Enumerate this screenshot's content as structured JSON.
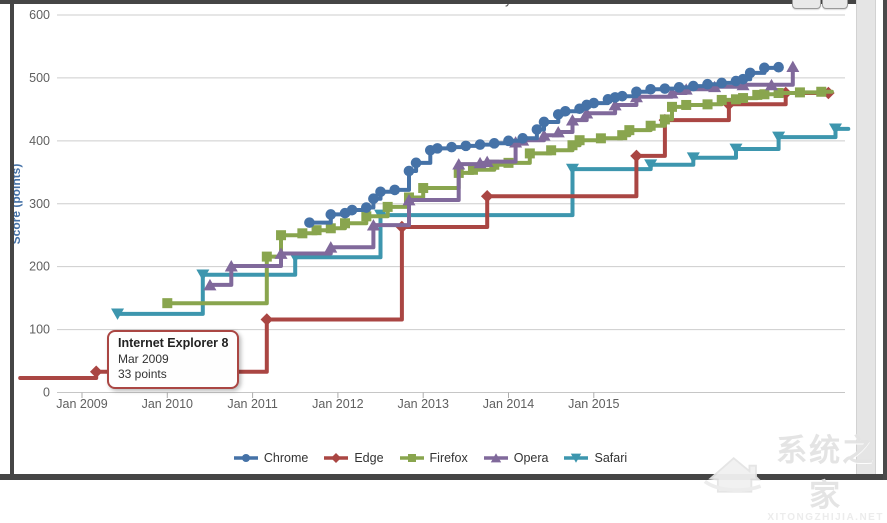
{
  "title_fragment": "y",
  "tooltip": {
    "title": "Internet Explorer 8",
    "date": "Mar 2009",
    "points": "33 points",
    "border_color": "#AA4643"
  },
  "watermark": {
    "text": "系统之家",
    "subtext": "XITONGZHIJIA.NET"
  },
  "chart_data": {
    "type": "line",
    "step": "left",
    "title": "",
    "y_axis": {
      "title": "Score (points)",
      "title_color": "#4572A7",
      "min": 0,
      "max": 600,
      "tick_interval": 100
    },
    "x_axis": {
      "tick_labels": [
        "Jan 2009",
        "Jan 2010",
        "Jan 2011",
        "Jan 2012",
        "Jan 2013",
        "Jan 2014",
        "Jan 2015"
      ],
      "tick_months": [
        0,
        12,
        24,
        36,
        48,
        60,
        72
      ],
      "start_label": "Jan 2009"
    },
    "grid": true,
    "legend_position": "bottom",
    "series": [
      {
        "name": "Safari",
        "color": "#3D96AE",
        "marker": "triangle-down",
        "points": [
          [
            5,
            125
          ],
          [
            17,
            187
          ],
          [
            30,
            215
          ],
          [
            42,
            282
          ],
          [
            69,
            355
          ],
          [
            80,
            362
          ],
          [
            86,
            373
          ],
          [
            92,
            387
          ],
          [
            98,
            406
          ],
          [
            106,
            419
          ],
          [
            107.8,
            419,
            0
          ]
        ]
      },
      {
        "name": "Edge",
        "color": "#AA4643",
        "marker": "diamond",
        "points": [
          [
            -8.7,
            23,
            0
          ],
          [
            2,
            33
          ],
          [
            26,
            116
          ],
          [
            45,
            263
          ],
          [
            57,
            312
          ],
          [
            78,
            376
          ],
          [
            82,
            433
          ],
          [
            91,
            458
          ],
          [
            99,
            476
          ],
          [
            105,
            476
          ]
        ]
      },
      {
        "name": "Firefox",
        "color": "#89A54E",
        "marker": "square",
        "points": [
          [
            12,
            142
          ],
          [
            26,
            216
          ],
          [
            28,
            250
          ],
          [
            31,
            253
          ],
          [
            33,
            258
          ],
          [
            35,
            261
          ],
          [
            37,
            269
          ],
          [
            40,
            280
          ],
          [
            43,
            295
          ],
          [
            46,
            310
          ],
          [
            48,
            325
          ],
          [
            53,
            349
          ],
          [
            55,
            354
          ],
          [
            58,
            362
          ],
          [
            60,
            365
          ],
          [
            63,
            380
          ],
          [
            66,
            385
          ],
          [
            69,
            393
          ],
          [
            70,
            401
          ],
          [
            73,
            404
          ],
          [
            76,
            409
          ],
          [
            77,
            417
          ],
          [
            80,
            424
          ],
          [
            82,
            434
          ],
          [
            83,
            454
          ],
          [
            85,
            457
          ],
          [
            88,
            458
          ],
          [
            90,
            465
          ],
          [
            92,
            466
          ],
          [
            93,
            468
          ],
          [
            95,
            473
          ],
          [
            96,
            474
          ],
          [
            98,
            476
          ],
          [
            101,
            477
          ],
          [
            104,
            478
          ],
          [
            105.5,
            478,
            0
          ]
        ]
      },
      {
        "name": "Opera",
        "color": "#80699B",
        "marker": "triangle-up",
        "points": [
          [
            18,
            171
          ],
          [
            21,
            201
          ],
          [
            28,
            221
          ],
          [
            35,
            231
          ],
          [
            41,
            266
          ],
          [
            46,
            306
          ],
          [
            53,
            363
          ],
          [
            56,
            365
          ],
          [
            57,
            367
          ],
          [
            61,
            398
          ],
          [
            62,
            401
          ],
          [
            65,
            409
          ],
          [
            67,
            414
          ],
          [
            69,
            433
          ],
          [
            71,
            444
          ],
          [
            75,
            457
          ],
          [
            78,
            470
          ],
          [
            83,
            476
          ],
          [
            85,
            482
          ],
          [
            89,
            486
          ],
          [
            93,
            489
          ],
          [
            97,
            489
          ],
          [
            100,
            518
          ]
        ]
      },
      {
        "name": "Chrome",
        "color": "#4572A7",
        "marker": "circle",
        "points": [
          [
            32,
            270
          ],
          [
            35,
            283
          ],
          [
            37,
            285
          ],
          [
            38,
            290
          ],
          [
            40,
            294
          ],
          [
            41,
            308
          ],
          [
            42,
            319
          ],
          [
            44,
            322
          ],
          [
            46,
            352
          ],
          [
            47,
            365
          ],
          [
            49,
            385
          ],
          [
            50,
            388
          ],
          [
            52,
            390
          ],
          [
            54,
            392
          ],
          [
            56,
            394
          ],
          [
            58,
            396
          ],
          [
            60,
            400
          ],
          [
            62,
            404
          ],
          [
            64,
            418
          ],
          [
            65,
            430
          ],
          [
            67,
            442
          ],
          [
            68,
            447
          ],
          [
            70,
            451
          ],
          [
            71,
            457
          ],
          [
            72,
            460
          ],
          [
            74,
            466
          ],
          [
            75,
            469
          ],
          [
            76,
            471
          ],
          [
            78,
            478
          ],
          [
            80,
            482
          ],
          [
            82,
            483
          ],
          [
            84,
            485
          ],
          [
            86,
            487
          ],
          [
            88,
            490
          ],
          [
            90,
            492
          ],
          [
            92,
            495
          ],
          [
            93,
            498
          ],
          [
            94,
            508
          ],
          [
            96,
            516
          ],
          [
            98,
            517
          ]
        ]
      }
    ],
    "legend_order": [
      "Chrome",
      "Edge",
      "Firefox",
      "Opera",
      "Safari"
    ]
  }
}
